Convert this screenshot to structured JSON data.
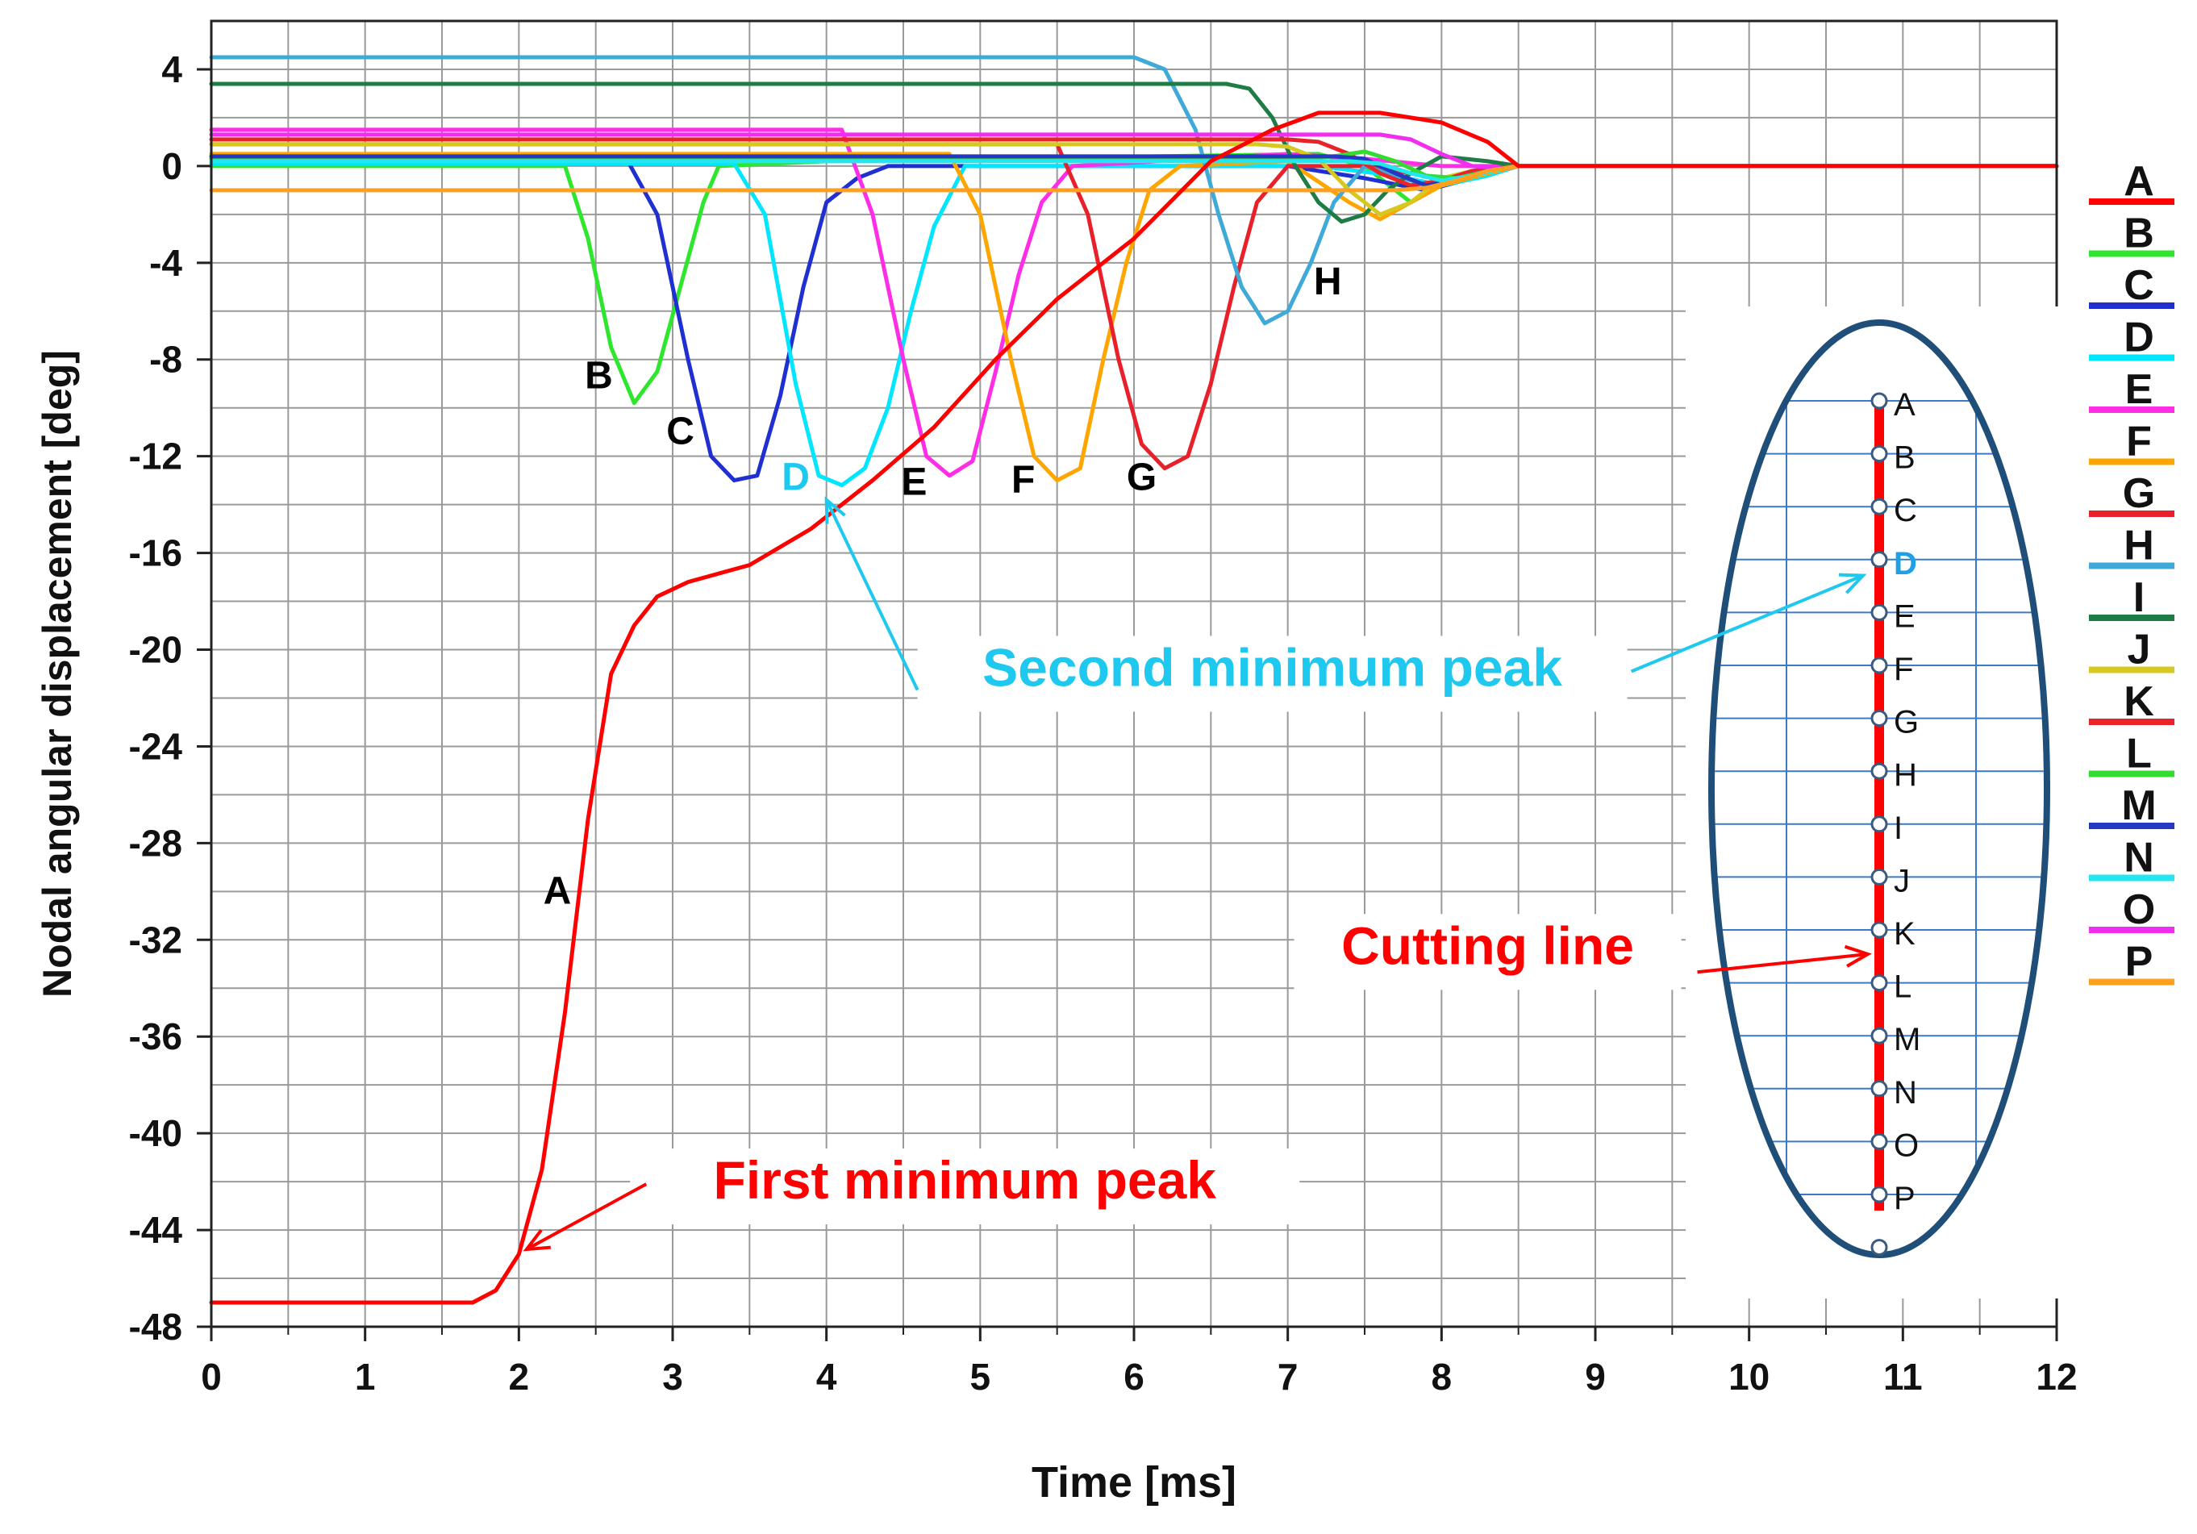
{
  "chart_data": {
    "type": "line",
    "title": "",
    "xlabel": "Time [ms]",
    "ylabel": "Nodal angular displacement [deg]",
    "xlim": [
      0,
      12
    ],
    "ylim": [
      -48,
      6
    ],
    "x_ticks": [
      0,
      1,
      2,
      3,
      4,
      5,
      6,
      7,
      8,
      9,
      10,
      11,
      12
    ],
    "y_ticks": [
      4,
      0,
      -4,
      -8,
      -12,
      -16,
      -20,
      -24,
      -28,
      -32,
      -36,
      -40,
      -44,
      -48
    ],
    "grid": true,
    "legend": {
      "position": "right",
      "entries": [
        {
          "label": "A",
          "color": "#ff0000"
        },
        {
          "label": "B",
          "color": "#2ee62e"
        },
        {
          "label": "C",
          "color": "#2030d0"
        },
        {
          "label": "D",
          "color": "#00e6ff"
        },
        {
          "label": "E",
          "color": "#ff2ee6"
        },
        {
          "label": "F",
          "color": "#ffa500"
        },
        {
          "label": "G",
          "color": "#e8202a"
        },
        {
          "label": "H",
          "color": "#3fa9d8"
        },
        {
          "label": "I",
          "color": "#1e7d44"
        },
        {
          "label": "J",
          "color": "#d6c81e"
        },
        {
          "label": "K",
          "color": "#e8242a"
        },
        {
          "label": "L",
          "color": "#32dc32"
        },
        {
          "label": "M",
          "color": "#2438c4"
        },
        {
          "label": "N",
          "color": "#22e6f0"
        },
        {
          "label": "O",
          "color": "#f02ef0"
        },
        {
          "label": "P",
          "color": "#ffa020"
        }
      ]
    },
    "series": [
      {
        "name": "A",
        "color": "#ff0000",
        "x": [
          0,
          1.7,
          1.85,
          2.0,
          2.15,
          2.3,
          2.45,
          2.6,
          2.75,
          2.9,
          3.1,
          3.5,
          3.9,
          4.3,
          4.7,
          5.1,
          5.5,
          6.0,
          6.5,
          6.9,
          7.2,
          7.6,
          8.0,
          8.3,
          8.5,
          12
        ],
        "y": [
          -47,
          -47,
          -46.5,
          -45,
          -41.5,
          -35,
          -27,
          -21,
          -19,
          -17.8,
          -17.2,
          -16.5,
          -15,
          -13,
          -10.8,
          -8,
          -5.5,
          -3,
          0.2,
          1.5,
          2.2,
          2.2,
          1.8,
          1.0,
          0,
          0
        ]
      },
      {
        "name": "B",
        "color": "#2ee62e",
        "x": [
          0,
          2.3,
          2.45,
          2.6,
          2.75,
          2.9,
          3.05,
          3.2,
          3.3,
          4.0,
          7.2,
          7.5,
          7.8,
          8.0,
          8.2,
          8.4,
          12
        ],
        "y": [
          0,
          0,
          -3,
          -7.5,
          -9.8,
          -8.5,
          -5,
          -1.5,
          0,
          0.2,
          0.5,
          0,
          -1.5,
          -0.8,
          -0.3,
          0,
          0
        ]
      },
      {
        "name": "C",
        "color": "#2030d0",
        "x": [
          0,
          2.7,
          2.9,
          3.1,
          3.25,
          3.4,
          3.55,
          3.7,
          3.85,
          4.0,
          4.2,
          4.4,
          7.0,
          7.5,
          7.9,
          8.2,
          8.5,
          12
        ],
        "y": [
          0.3,
          0.3,
          -2,
          -8,
          -12,
          -13,
          -12.8,
          -9.5,
          -5,
          -1.5,
          -0.5,
          0,
          0,
          -0.5,
          -1,
          -0.5,
          0,
          0
        ]
      },
      {
        "name": "D",
        "color": "#00e6ff",
        "x": [
          0,
          3.4,
          3.6,
          3.8,
          3.95,
          4.1,
          4.25,
          4.4,
          4.55,
          4.7,
          4.9,
          7.2,
          7.7,
          8.0,
          8.3,
          8.5,
          12
        ],
        "y": [
          0.1,
          0.1,
          -2,
          -9,
          -12.8,
          -13.2,
          -12.5,
          -10,
          -6,
          -2.5,
          0,
          0,
          -0.4,
          -0.8,
          -0.4,
          0,
          0
        ]
      },
      {
        "name": "E",
        "color": "#ff2ee6",
        "x": [
          0,
          4.1,
          4.3,
          4.5,
          4.65,
          4.8,
          4.95,
          5.1,
          5.25,
          5.4,
          5.6,
          7.0,
          7.5,
          8.0,
          8.5,
          12
        ],
        "y": [
          1.5,
          1.5,
          -2,
          -8,
          -12,
          -12.8,
          -12.2,
          -8.5,
          -4.5,
          -1.5,
          0,
          0.5,
          0.3,
          0,
          0,
          0
        ]
      },
      {
        "name": "F",
        "color": "#ffa500",
        "x": [
          0,
          4.8,
          5.0,
          5.2,
          5.35,
          5.5,
          5.65,
          5.8,
          5.95,
          6.1,
          6.3,
          7.0,
          7.4,
          7.6,
          7.8,
          8.0,
          8.3,
          8.5,
          12
        ],
        "y": [
          0.5,
          0.5,
          -2,
          -8,
          -12,
          -13,
          -12.5,
          -8,
          -4,
          -1,
          0,
          0.2,
          -1.5,
          -2.2,
          -1.5,
          -0.8,
          -0.3,
          0,
          0
        ]
      },
      {
        "name": "G",
        "color": "#e8202a",
        "x": [
          0,
          5.5,
          5.7,
          5.9,
          6.05,
          6.2,
          6.35,
          6.5,
          6.65,
          6.8,
          7.0,
          7.5,
          8.0,
          8.5,
          12
        ],
        "y": [
          0.9,
          0.9,
          -2,
          -8,
          -11.5,
          -12.5,
          -12,
          -9,
          -5,
          -1.5,
          0,
          0,
          -0.5,
          0,
          0
        ]
      },
      {
        "name": "H",
        "color": "#3fa9d8",
        "x": [
          0,
          6.0,
          6.2,
          6.4,
          6.55,
          6.7,
          6.85,
          7.0,
          7.15,
          7.3,
          7.5,
          7.9,
          8.2,
          8.5,
          12
        ],
        "y": [
          4.5,
          4.5,
          4,
          1.5,
          -2,
          -5,
          -6.5,
          -6,
          -4,
          -1.5,
          0,
          -0.8,
          -0.3,
          0,
          0
        ]
      },
      {
        "name": "I",
        "color": "#1e7d44",
        "x": [
          0,
          6.6,
          6.75,
          6.9,
          7.05,
          7.2,
          7.35,
          7.5,
          7.65,
          7.8,
          8.0,
          8.3,
          8.5,
          12
        ],
        "y": [
          3.4,
          3.4,
          3.2,
          2,
          0,
          -1.5,
          -2.3,
          -2,
          -1,
          -0.3,
          0.4,
          0.2,
          0,
          0
        ]
      },
      {
        "name": "J",
        "color": "#d6c81e",
        "x": [
          0,
          6.8,
          7.0,
          7.2,
          7.4,
          7.6,
          7.8,
          8.0,
          8.2,
          8.5,
          12
        ],
        "y": [
          0.9,
          0.9,
          0.8,
          0.3,
          -1,
          -2,
          -1.5,
          -0.5,
          -0.2,
          0,
          0
        ]
      },
      {
        "name": "K",
        "color": "#e8242a",
        "x": [
          0,
          7.0,
          7.2,
          7.4,
          7.6,
          7.8,
          8.0,
          8.2,
          8.5,
          12
        ],
        "y": [
          1.1,
          1.1,
          1.0,
          0.5,
          -0.3,
          -0.8,
          -0.6,
          -0.2,
          0,
          0
        ]
      },
      {
        "name": "L",
        "color": "#32dc32",
        "x": [
          0,
          7.1,
          7.3,
          7.5,
          7.7,
          7.9,
          8.1,
          8.3,
          8.5,
          12
        ],
        "y": [
          0.3,
          0.3,
          0.4,
          0.6,
          0.2,
          -0.4,
          -0.5,
          -0.2,
          0,
          0
        ]
      },
      {
        "name": "M",
        "color": "#2438c4",
        "x": [
          0,
          7.3,
          7.5,
          7.7,
          7.9,
          8.1,
          8.3,
          8.5,
          12
        ],
        "y": [
          0.4,
          0.4,
          0.3,
          -0.3,
          -0.8,
          -0.6,
          -0.2,
          0,
          0
        ]
      },
      {
        "name": "N",
        "color": "#22e6f0",
        "x": [
          0,
          7.4,
          7.6,
          7.8,
          8.0,
          8.2,
          8.4,
          8.5,
          12
        ],
        "y": [
          0.2,
          0.2,
          0.1,
          -0.3,
          -0.6,
          -0.4,
          -0.1,
          0,
          0
        ]
      },
      {
        "name": "O",
        "color": "#f02ef0",
        "x": [
          0,
          7.6,
          7.8,
          8.0,
          8.2,
          8.4,
          8.5,
          12
        ],
        "y": [
          1.3,
          1.3,
          1.1,
          0.5,
          0,
          -0.1,
          0,
          0
        ]
      },
      {
        "name": "P",
        "color": "#ffa020",
        "x": [
          0,
          7.7,
          7.9,
          8.1,
          8.3,
          8.5,
          12
        ],
        "y": [
          -1.0,
          -1.0,
          -0.9,
          -0.6,
          -0.2,
          0,
          0
        ]
      }
    ],
    "curve_labels": [
      {
        "text": "A",
        "x": 2.25,
        "y": -30.5,
        "color": "#000000"
      },
      {
        "text": "B",
        "x": 2.52,
        "y": -9.2,
        "color": "#000000"
      },
      {
        "text": "C",
        "x": 3.05,
        "y": -11.5,
        "color": "#000000"
      },
      {
        "text": "D",
        "x": 3.8,
        "y": -13.4,
        "color": "#1ec8ee"
      },
      {
        "text": "E",
        "x": 4.57,
        "y": -13.6,
        "color": "#000000"
      },
      {
        "text": "F",
        "x": 5.28,
        "y": -13.5,
        "color": "#000000"
      },
      {
        "text": "G",
        "x": 6.05,
        "y": -13.4,
        "color": "#000000"
      },
      {
        "text": "H",
        "x": 7.26,
        "y": -5.3,
        "color": "#000000"
      }
    ],
    "annotations": [
      {
        "text": "First minimum peak",
        "color": "#ff0000",
        "text_at": [
          4.9,
          -42.7
        ],
        "arrow_to": [
          2.05,
          -44.8
        ]
      },
      {
        "text": "Second minimum peak",
        "color": "#1ec8ee",
        "text_at": [
          6.9,
          -21.5
        ],
        "arrow_to": [
          4.0,
          -13.8
        ]
      },
      {
        "text": "Cutting line",
        "color": "#ff0000",
        "text_at": [
          8.3,
          -33.0
        ]
      }
    ]
  },
  "inset": {
    "nodes": [
      "A",
      "B",
      "C",
      "D",
      "E",
      "F",
      "G",
      "H",
      "I",
      "J",
      "K",
      "L",
      "M",
      "N",
      "O",
      "P"
    ],
    "highlight_node": "D",
    "highlight_color": "#1ea0e6",
    "ellipse_color": "#1f4e79",
    "grid_color": "#3a7ac8",
    "cutting_line_color": "#ff0000"
  }
}
